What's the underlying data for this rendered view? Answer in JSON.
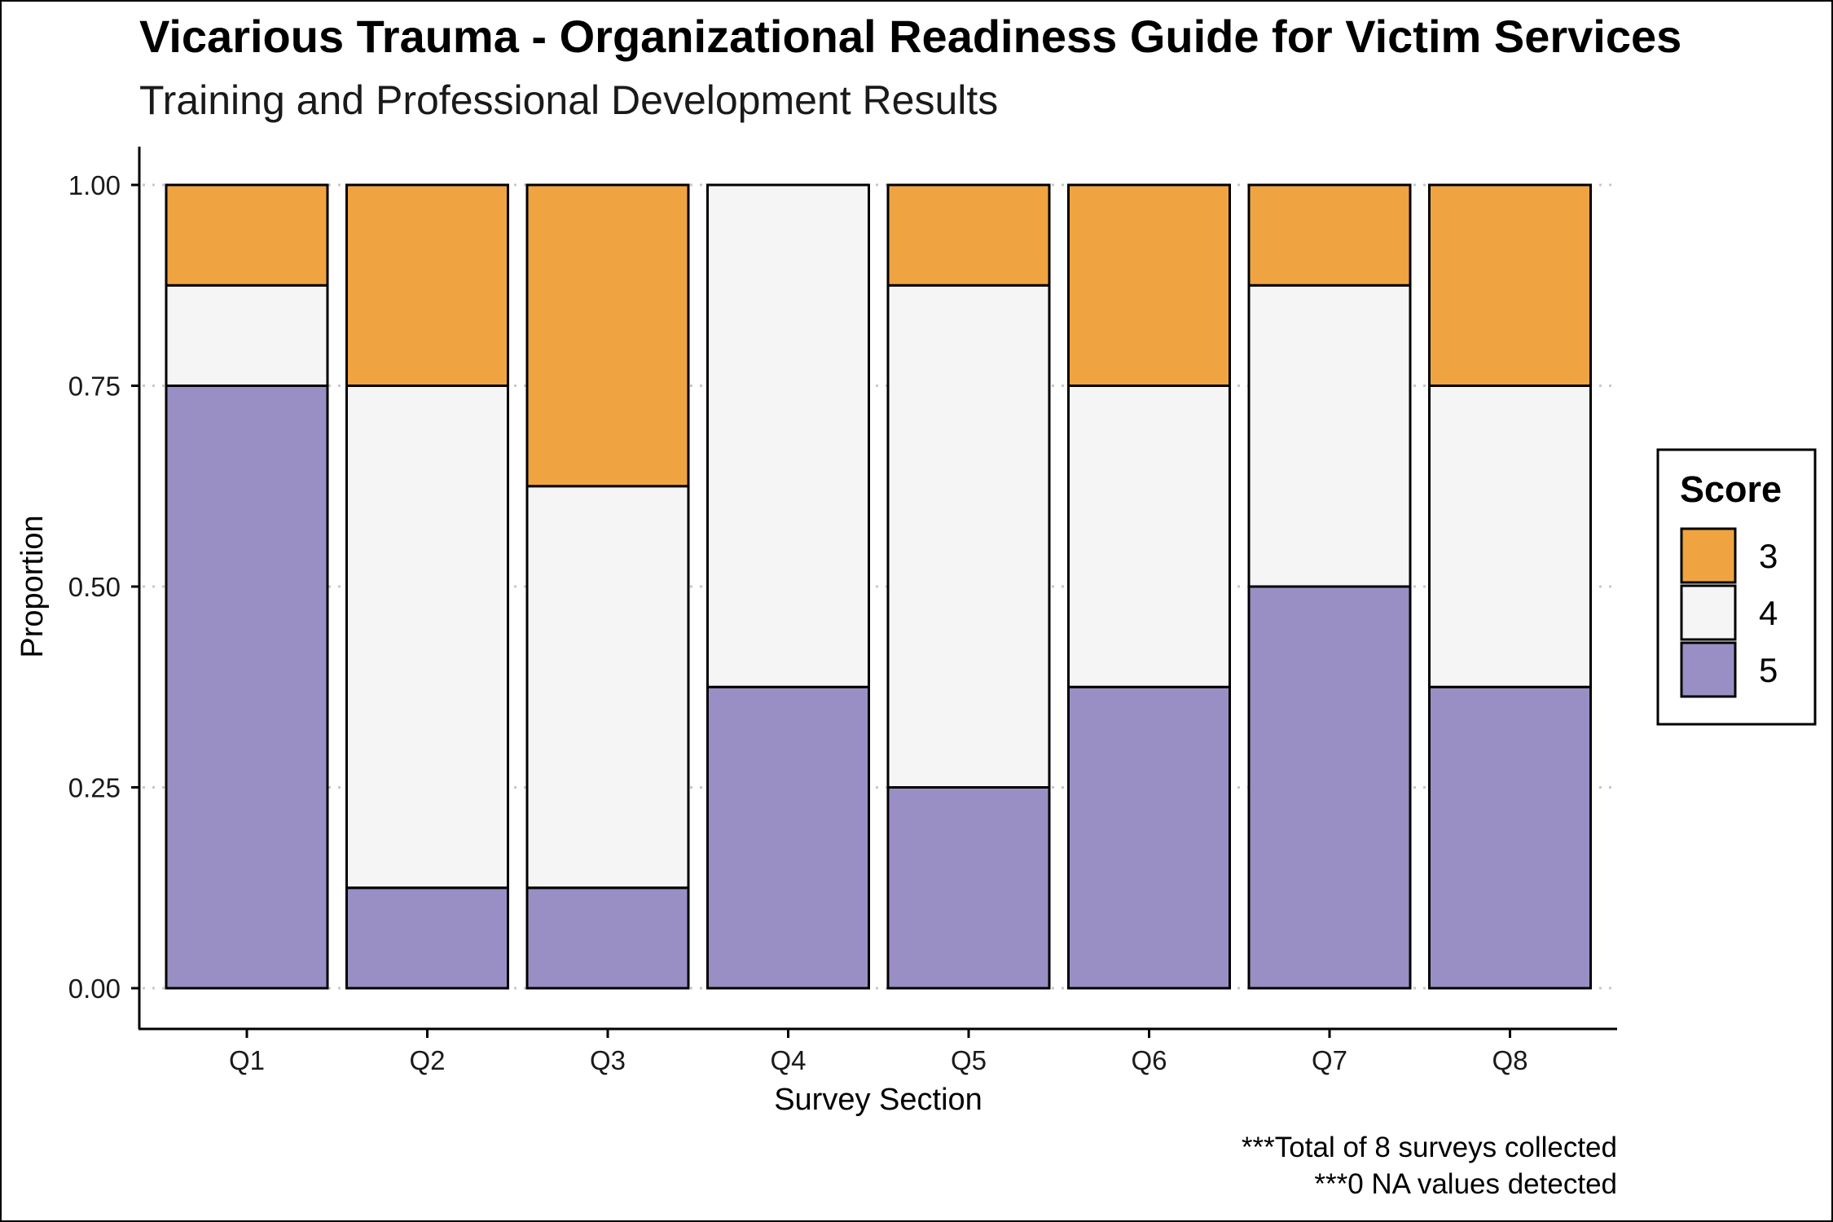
{
  "chart_data": {
    "type": "bar",
    "stacked": true,
    "title": "Vicarious Trauma - Organizational Readiness Guide for Victim Services",
    "subtitle": "Training and Professional Development Results",
    "xlabel": "Survey Section",
    "ylabel": "Proportion",
    "ylim": [
      0,
      1
    ],
    "yticks": [
      "0.00",
      "0.25",
      "0.50",
      "0.75",
      "1.00"
    ],
    "grid": "horizontal dotted",
    "categories": [
      "Q1",
      "Q2",
      "Q3",
      "Q4",
      "Q5",
      "Q6",
      "Q7",
      "Q8"
    ],
    "legend": {
      "title": "Score",
      "position": "right"
    },
    "series": [
      {
        "name": "5",
        "color": "#9a8fc4",
        "values": [
          0.75,
          0.125,
          0.125,
          0.375,
          0.25,
          0.375,
          0.5,
          0.375
        ]
      },
      {
        "name": "4",
        "color": "#f5f5f5",
        "values": [
          0.125,
          0.625,
          0.5,
          0.625,
          0.625,
          0.375,
          0.375,
          0.375
        ]
      },
      {
        "name": "3",
        "color": "#f0a441",
        "values": [
          0.125,
          0.25,
          0.375,
          0,
          0.125,
          0.25,
          0.125,
          0.25
        ]
      }
    ],
    "legend_order": [
      "3",
      "4",
      "5"
    ],
    "captions": [
      "***Total of 8 surveys collected",
      "***0 NA values detected"
    ]
  }
}
